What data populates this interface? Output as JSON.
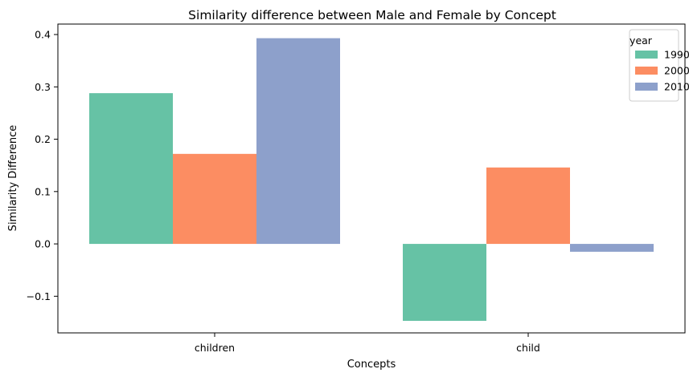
{
  "chart_data": {
    "type": "bar",
    "title": "Similarity difference between Male and Female by Concept",
    "xlabel": "Concepts",
    "ylabel": "Similarity Difference",
    "categories": [
      "children",
      "child"
    ],
    "legend": {
      "title": "year",
      "placement": "top-right"
    },
    "series": [
      {
        "name": "1990",
        "color": "#66c2a5",
        "values": [
          0.288,
          -0.147
        ]
      },
      {
        "name": "2000",
        "color": "#fc8d62",
        "values": [
          0.172,
          0.146
        ]
      },
      {
        "name": "2010",
        "color": "#8da0cb",
        "values": [
          0.393,
          -0.015
        ]
      }
    ],
    "ylim": [
      -0.17,
      0.42
    ],
    "yticks": [
      -0.1,
      0.0,
      0.1,
      0.2,
      0.3,
      0.4
    ],
    "ytick_labels": [
      "−0.1",
      "0.0",
      "0.1",
      "0.2",
      "0.3",
      "0.4"
    ],
    "grid": false
  }
}
